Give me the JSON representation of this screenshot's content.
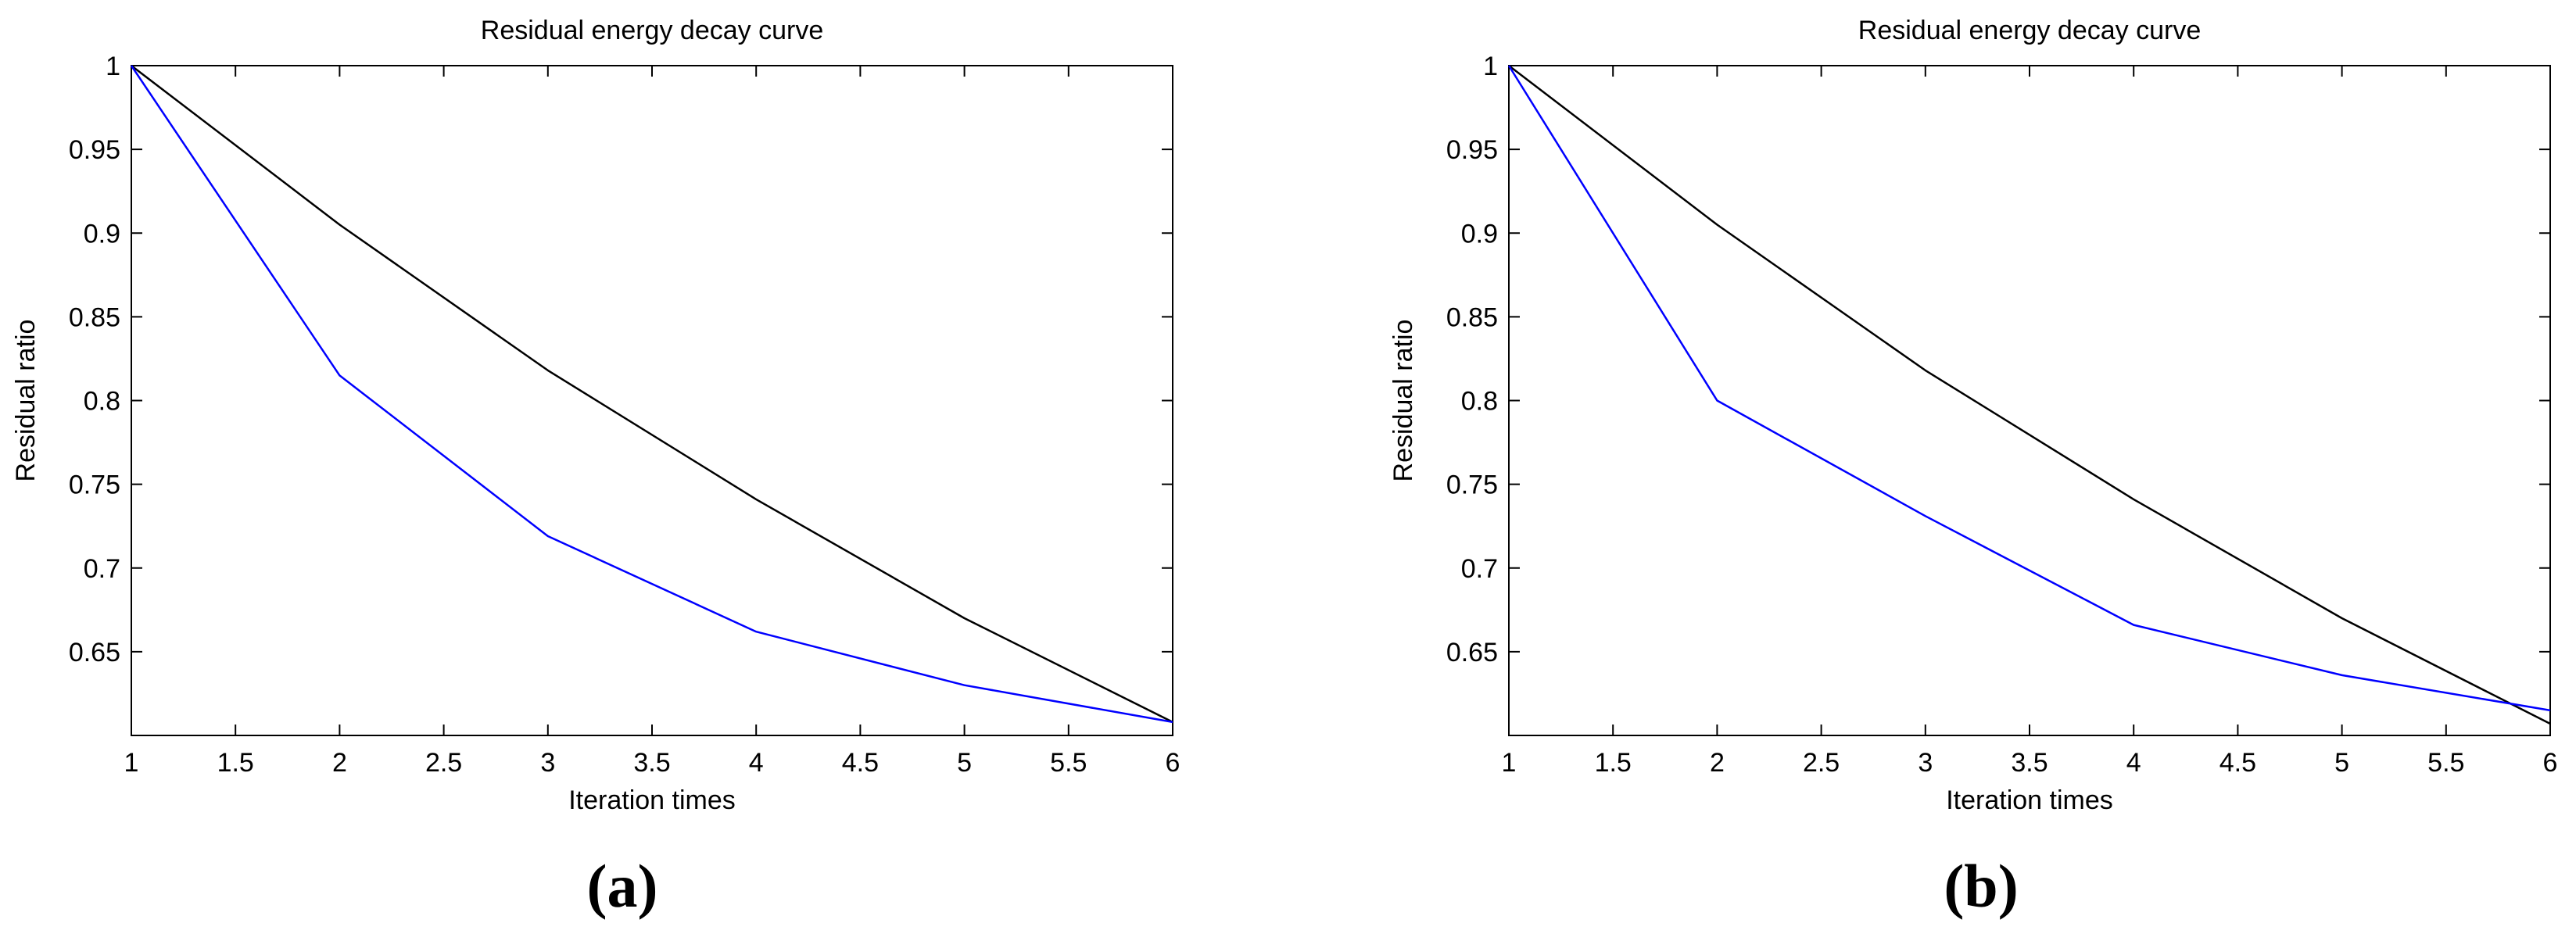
{
  "captions": [
    "a",
    "b"
  ],
  "chart_data": [
    {
      "type": "line",
      "title": "Residual energy decay curve",
      "xlabel": "Iteration times",
      "ylabel": "Residual ratio",
      "xlim": [
        1,
        6
      ],
      "ylim": [
        0.6,
        1
      ],
      "xticks": [
        "1",
        "1.5",
        "2",
        "2.5",
        "3",
        "3.5",
        "4",
        "4.5",
        "5",
        "5.5",
        "6"
      ],
      "yticks": [
        "0.65",
        "0.7",
        "0.75",
        "0.8",
        "0.85",
        "0.9",
        "0.95",
        "1"
      ],
      "grid": false,
      "legend": "none",
      "x": [
        1,
        2,
        3,
        4,
        5,
        6
      ],
      "series": [
        {
          "color": "#000000",
          "values": [
            1.0,
            0.905,
            0.818,
            0.741,
            0.67,
            0.608
          ]
        },
        {
          "color": "#0000ff",
          "values": [
            1.0,
            0.815,
            0.719,
            0.662,
            0.63,
            0.608
          ]
        }
      ]
    },
    {
      "type": "line",
      "title": "Residual energy decay curve",
      "xlabel": "Iteration times",
      "ylabel": "Residual ratio",
      "xlim": [
        1,
        6
      ],
      "ylim": [
        0.6,
        1
      ],
      "xticks": [
        "1",
        "1.5",
        "2",
        "2.5",
        "3",
        "3.5",
        "4",
        "4.5",
        "5",
        "5.5",
        "6"
      ],
      "yticks": [
        "0.65",
        "0.7",
        "0.75",
        "0.8",
        "0.85",
        "0.9",
        "0.95",
        "1"
      ],
      "grid": false,
      "legend": "none",
      "x": [
        1,
        2,
        3,
        4,
        5,
        6
      ],
      "series": [
        {
          "color": "#000000",
          "values": [
            1.0,
            0.905,
            0.818,
            0.741,
            0.67,
            0.607
          ]
        },
        {
          "color": "#0000ff",
          "values": [
            1.0,
            0.8,
            0.731,
            0.666,
            0.636,
            0.615
          ]
        }
      ]
    }
  ]
}
